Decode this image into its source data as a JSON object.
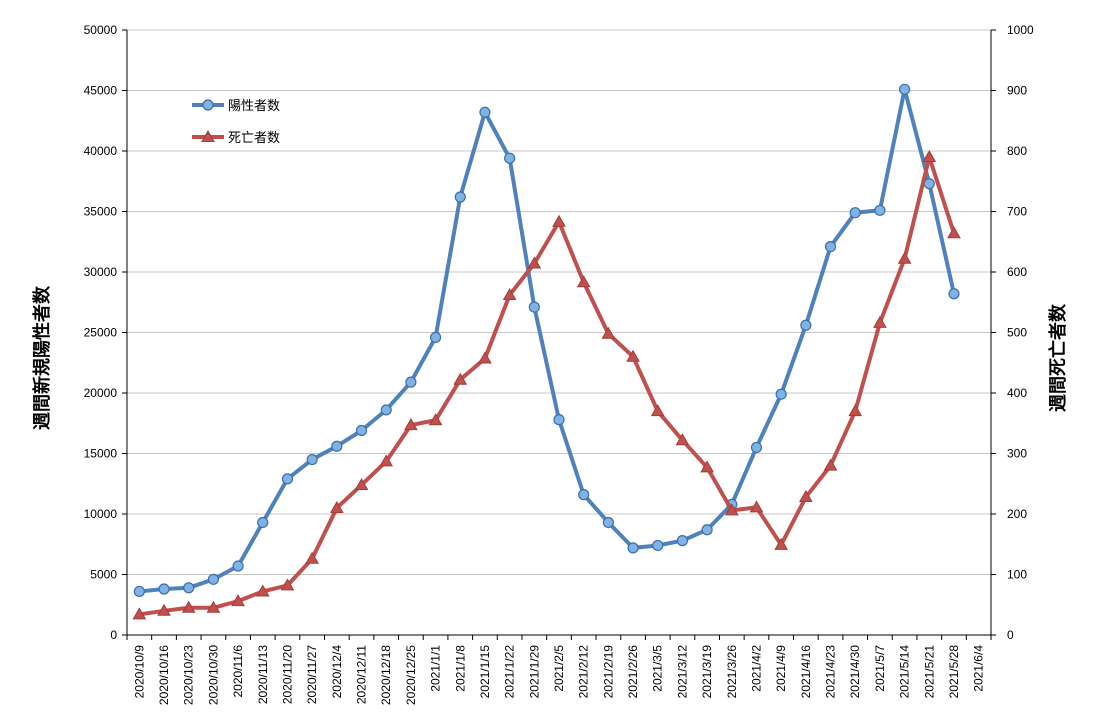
{
  "chart_data": {
    "type": "line",
    "categories": [
      "2020/10/9",
      "2020/10/16",
      "2020/10/23",
      "2020/10/30",
      "2020/11/6",
      "2020/11/13",
      "2020/11/20",
      "2020/11/27",
      "2020/12/4",
      "2020/12/11",
      "2020/12/18",
      "2020/12/25",
      "2021/1/1",
      "2021/1/8",
      "2021/1/15",
      "2021/1/22",
      "2021/1/29",
      "2021/2/5",
      "2021/2/12",
      "2021/2/19",
      "2021/2/26",
      "2021/3/5",
      "2021/3/12",
      "2021/3/19",
      "2021/3/26",
      "2021/4/2",
      "2021/4/9",
      "2021/4/16",
      "2021/4/23",
      "2021/4/30",
      "2021/5/7",
      "2021/5/14",
      "2021/5/21",
      "2021/5/28",
      "2021/6/4"
    ],
    "series": [
      {
        "name": "陽性者数",
        "axis": "left",
        "color": "#4f81bd",
        "marker": "circle",
        "values": [
          3600,
          3800,
          3900,
          4600,
          5700,
          9300,
          12900,
          14500,
          15600,
          16900,
          18600,
          20900,
          24600,
          36200,
          43200,
          39400,
          27100,
          17800,
          11600,
          9300,
          7200,
          7400,
          7800,
          8700,
          10800,
          15500,
          19900,
          25600,
          32100,
          34900,
          35100,
          45100,
          37300,
          28200,
          null
        ]
      },
      {
        "name": "死亡者数",
        "axis": "right",
        "color": "#c0504d",
        "marker": "triangle",
        "values": [
          34,
          40,
          45,
          45,
          56,
          72,
          82,
          126,
          210,
          248,
          287,
          347,
          355,
          422,
          457,
          562,
          614,
          683,
          583,
          498,
          460,
          370,
          322,
          277,
          206,
          211,
          149,
          228,
          280,
          370,
          516,
          622,
          790,
          664,
          null
        ]
      }
    ],
    "ylabel": "週間新規陽性者数",
    "y2label": "週間死亡者数",
    "ylim": [
      0,
      50000
    ],
    "y2lim": [
      0,
      1000
    ],
    "yticks": [
      "0",
      "5000",
      "10000",
      "15000",
      "20000",
      "25000",
      "30000",
      "35000",
      "40000",
      "45000",
      "50000"
    ],
    "y2ticks": [
      "0",
      "100",
      "200",
      "300",
      "400",
      "500",
      "600",
      "700",
      "800",
      "900",
      "1000"
    ],
    "grid": true,
    "legend": "top-left"
  }
}
